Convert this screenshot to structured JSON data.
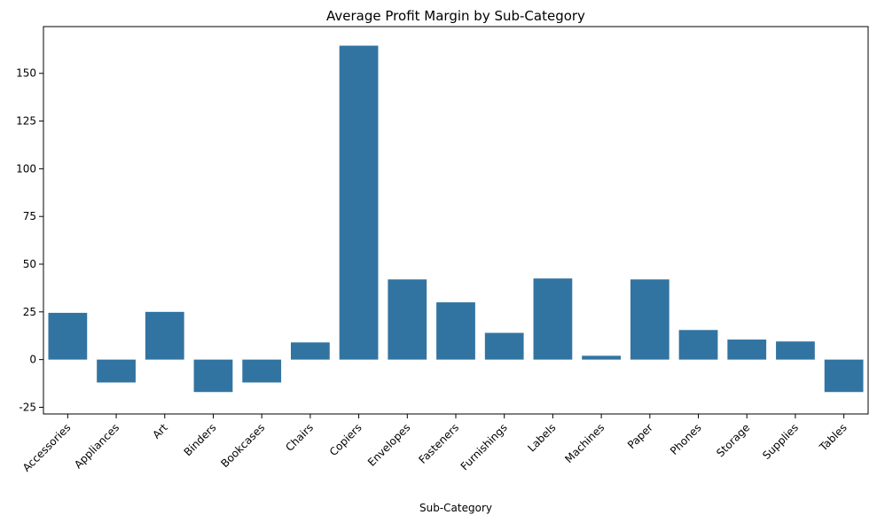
{
  "chart_data": {
    "type": "bar",
    "title": "Average Profit Margin by Sub-Category",
    "xlabel": "Sub-Category",
    "ylabel": "",
    "categories": [
      "Accessories",
      "Appliances",
      "Art",
      "Binders",
      "Bookcases",
      "Chairs",
      "Copiers",
      "Envelopes",
      "Fasteners",
      "Furnishings",
      "Labels",
      "Machines",
      "Paper",
      "Phones",
      "Storage",
      "Supplies",
      "Tables"
    ],
    "values": [
      24.5,
      -12.0,
      25.0,
      -17.0,
      -12.0,
      9.0,
      164.5,
      42.0,
      30.0,
      14.0,
      42.5,
      2.0,
      42.0,
      15.5,
      10.5,
      9.5,
      -17.0
    ],
    "ylim": [
      -28.5,
      174.5
    ],
    "yticks": [
      -25,
      0,
      25,
      50,
      75,
      100,
      125,
      150
    ],
    "grid": false,
    "bar_color": "#3274a1"
  }
}
